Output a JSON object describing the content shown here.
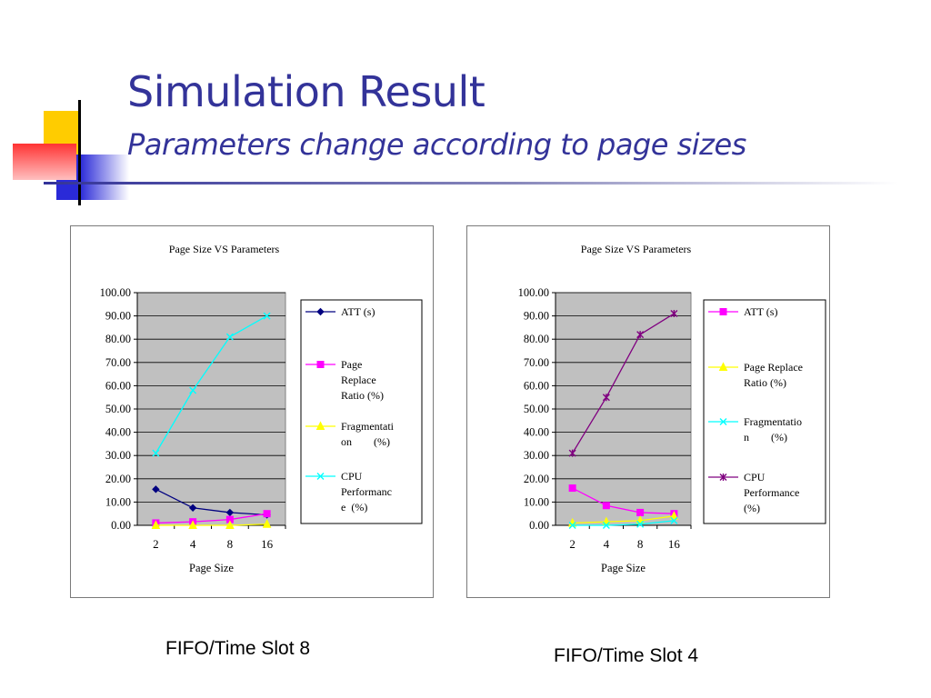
{
  "slide": {
    "title": "Simulation Result",
    "subtitle": "Parameters change according to page sizes"
  },
  "colors": {
    "title": "#333399",
    "accent_yellow": "#ffcc00",
    "accent_blue": "#2a2ad8",
    "accent_red": "#ff3333"
  },
  "captions": {
    "left": "FIFO/Time Slot 8",
    "right": "FIFO/Time Slot 4"
  },
  "chart_data": [
    {
      "type": "line",
      "title": "Page Size VS Parameters",
      "xlabel": "Page Size",
      "ylabel": "",
      "categories": [
        "2",
        "4",
        "8",
        "16"
      ],
      "ylim": [
        0,
        100
      ],
      "yticks": [
        "0.00",
        "10.00",
        "20.00",
        "30.00",
        "40.00",
        "50.00",
        "60.00",
        "70.00",
        "80.00",
        "90.00",
        "100.00"
      ],
      "grid": true,
      "plot_background": "#c0c0c0",
      "legend_position": "right",
      "series": [
        {
          "name": "ATT (s)",
          "legend_lines": [
            "ATT (s)"
          ],
          "color": "#000080",
          "marker": "diamond",
          "values": [
            15.5,
            7.5,
            5.5,
            4.5
          ]
        },
        {
          "name": "Page Replace Ratio (%)",
          "legend_lines": [
            "Page",
            "Replace",
            "Ratio (%)"
          ],
          "color": "#ff00ff",
          "marker": "square",
          "values": [
            1.0,
            1.5,
            2.5,
            5.0
          ]
        },
        {
          "name": "Fragmentation (%)",
          "legend_lines": [
            "Fragmentati",
            "on        (%)"
          ],
          "color": "#ffff00",
          "marker": "triangle",
          "values": [
            0.0,
            0.0,
            0.0,
            0.5
          ]
        },
        {
          "name": "CPU Performance (%)",
          "legend_lines": [
            "CPU",
            "Performanc",
            "e  (%)"
          ],
          "color": "#00ffff",
          "marker": "x",
          "values": [
            31.0,
            58.0,
            81.0,
            90.0
          ]
        }
      ]
    },
    {
      "type": "line",
      "title": "Page Size VS Parameters",
      "xlabel": "Page Size",
      "ylabel": "",
      "categories": [
        "2",
        "4",
        "8",
        "16"
      ],
      "ylim": [
        0,
        100
      ],
      "yticks": [
        "0.00",
        "10.00",
        "20.00",
        "30.00",
        "40.00",
        "50.00",
        "60.00",
        "70.00",
        "80.00",
        "90.00",
        "100.00"
      ],
      "grid": true,
      "plot_background": "#c0c0c0",
      "legend_position": "right",
      "series": [
        {
          "name": "ATT (s)",
          "legend_lines": [
            "ATT (s)"
          ],
          "color": "#ff00ff",
          "marker": "square",
          "values": [
            16.0,
            8.5,
            5.5,
            5.0
          ]
        },
        {
          "name": "Page Replace Ratio (%)",
          "legend_lines": [
            "Page Replace",
            "Ratio (%)"
          ],
          "color": "#ffff00",
          "marker": "triangle",
          "values": [
            1.0,
            1.5,
            2.0,
            4.0
          ]
        },
        {
          "name": "Fragmentation (%)",
          "legend_lines": [
            "Fragmentatio",
            "n        (%)"
          ],
          "color": "#00ffff",
          "marker": "x",
          "values": [
            0.0,
            0.0,
            0.5,
            2.0
          ]
        },
        {
          "name": "CPU Performance (%)",
          "legend_lines": [
            "CPU",
            "Performance",
            "(%)"
          ],
          "color": "#800080",
          "marker": "star",
          "values": [
            31.0,
            55.0,
            82.0,
            91.0
          ]
        }
      ]
    }
  ]
}
